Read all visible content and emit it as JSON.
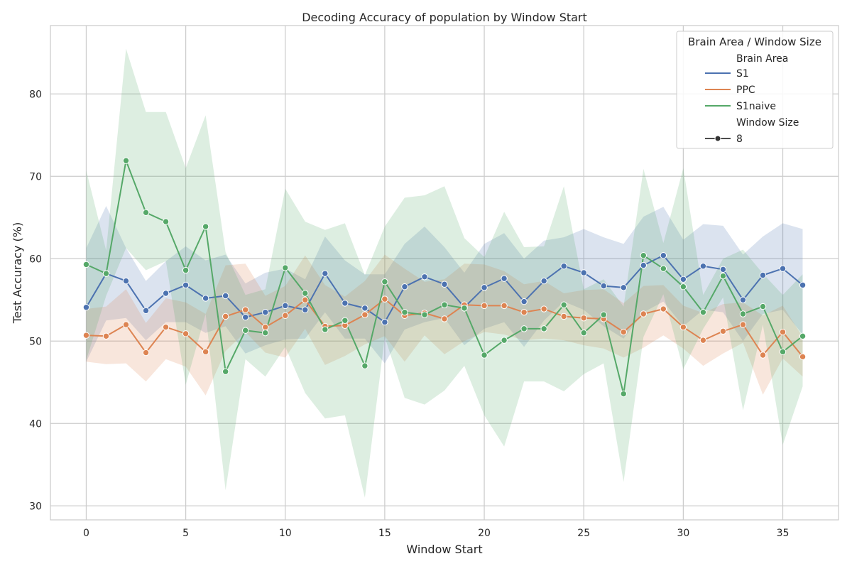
{
  "chart_data": {
    "type": "line",
    "title": "Decoding Accuracy of population by Window Start",
    "xlabel": "Window Start",
    "ylabel": "Test Accuracy (%)",
    "xlim": [
      -1.8,
      37.8
    ],
    "ylim": [
      28.3,
      88.3
    ],
    "xticks": [
      0,
      5,
      10,
      15,
      20,
      25,
      30,
      35
    ],
    "yticks": [
      30,
      40,
      50,
      60,
      70,
      80
    ],
    "grid": true,
    "legend": {
      "title": "Brain Area / Window Size",
      "placement": "top-right",
      "hue_title": "Brain Area",
      "style_title": "Window Size",
      "style_label": "8"
    },
    "series": [
      {
        "name": "S1",
        "color": "#4c72b0",
        "x": [
          0,
          1,
          2,
          3,
          4,
          5,
          6,
          7,
          8,
          9,
          10,
          11,
          12,
          13,
          14,
          15,
          16,
          17,
          18,
          19,
          20,
          21,
          22,
          23,
          24,
          25,
          26,
          27,
          28,
          29,
          30,
          31,
          32,
          33,
          34,
          35,
          36
        ],
        "y": [
          54.1,
          58.2,
          57.3,
          53.7,
          55.8,
          56.8,
          55.2,
          55.5,
          52.9,
          53.5,
          54.3,
          53.8,
          58.2,
          54.6,
          54.0,
          52.3,
          56.6,
          57.8,
          56.9,
          54.1,
          56.5,
          57.6,
          54.8,
          57.3,
          59.1,
          58.3,
          56.7,
          56.5,
          59.2,
          60.4,
          57.5,
          59.1,
          58.7,
          55.0,
          58.0,
          58.8,
          56.8
        ],
        "lower": [
          47.5,
          52.5,
          52.8,
          50.1,
          52.3,
          52.3,
          51.0,
          51.8,
          48.5,
          49.5,
          50.2,
          50.3,
          53.5,
          50.3,
          50.3,
          47.3,
          51.4,
          52.3,
          52.8,
          49.5,
          51.5,
          52.3,
          49.3,
          52.5,
          54.8,
          53.8,
          51.8,
          50.3,
          53.5,
          54.8,
          51.8,
          53.8,
          53.5,
          50.0,
          53.3,
          53.8,
          50.8
        ],
        "upper": [
          61.3,
          66.4,
          61.3,
          57.3,
          59.7,
          61.5,
          59.8,
          60.5,
          57.0,
          58.3,
          58.8,
          57.5,
          62.7,
          59.8,
          58.1,
          58.1,
          61.8,
          63.9,
          61.4,
          58.3,
          61.8,
          63.1,
          60.0,
          62.2,
          62.6,
          63.6,
          62.6,
          61.8,
          65.1,
          66.3,
          62.3,
          64.2,
          64.0,
          60.5,
          62.7,
          64.3,
          63.6
        ]
      },
      {
        "name": "PPC",
        "color": "#dd8452",
        "x": [
          0,
          1,
          2,
          3,
          4,
          5,
          6,
          7,
          8,
          9,
          10,
          11,
          12,
          13,
          14,
          15,
          16,
          17,
          18,
          19,
          20,
          21,
          22,
          23,
          24,
          25,
          26,
          27,
          28,
          29,
          30,
          31,
          32,
          33,
          34,
          35,
          36
        ],
        "y": [
          50.7,
          50.6,
          52.0,
          48.6,
          51.7,
          50.9,
          48.7,
          53.0,
          53.8,
          51.7,
          53.1,
          55.0,
          51.8,
          51.9,
          53.2,
          55.1,
          53.1,
          53.4,
          52.7,
          54.4,
          54.3,
          54.3,
          53.5,
          53.9,
          53.0,
          52.8,
          52.7,
          51.1,
          53.3,
          53.9,
          51.7,
          50.1,
          51.2,
          52.0,
          48.3,
          51.1,
          48.1
        ],
        "lower": [
          47.5,
          47.2,
          47.3,
          45.1,
          47.8,
          46.9,
          43.4,
          48.8,
          51.1,
          48.6,
          48.0,
          51.5,
          47.1,
          48.2,
          49.6,
          50.6,
          47.5,
          50.7,
          48.4,
          50.0,
          51.1,
          50.8,
          50.1,
          50.3,
          50.1,
          49.5,
          49.1,
          48.0,
          49.2,
          50.7,
          49.1,
          47.0,
          48.5,
          49.8,
          43.5,
          47.9,
          45.7
        ],
        "upper": [
          53.9,
          54.2,
          56.3,
          52.2,
          55.2,
          54.7,
          53.3,
          59.2,
          59.4,
          55.5,
          56.7,
          60.4,
          56.8,
          55.4,
          57.3,
          60.5,
          58.8,
          57.2,
          57.5,
          59.4,
          59.3,
          58.5,
          56.9,
          57.3,
          55.8,
          56.2,
          56.3,
          54.6,
          56.7,
          56.8,
          54.3,
          53.4,
          54.5,
          54.7,
          53.1,
          54.3,
          50.5
        ]
      },
      {
        "name": "S1naive",
        "color": "#55a868",
        "x": [
          0,
          1,
          2,
          3,
          4,
          5,
          6,
          7,
          8,
          9,
          10,
          11,
          12,
          13,
          14,
          15,
          16,
          17,
          18,
          19,
          20,
          21,
          22,
          23,
          24,
          25,
          26,
          27,
          28,
          29,
          30,
          31,
          32,
          33,
          34,
          35,
          36
        ],
        "y": [
          59.3,
          58.2,
          71.9,
          65.6,
          64.5,
          58.6,
          63.9,
          46.3,
          51.3,
          51.0,
          58.9,
          55.8,
          51.4,
          52.5,
          47.0,
          57.2,
          53.5,
          53.2,
          54.4,
          54.0,
          48.3,
          50.1,
          51.5,
          51.5,
          54.4,
          51.0,
          53.2,
          43.6,
          60.4,
          58.8,
          56.6,
          53.5,
          57.9,
          53.3,
          54.2,
          48.7,
          50.6
        ],
        "lower": [
          47.7,
          55.5,
          61.3,
          58.6,
          59.7,
          44.7,
          53.3,
          31.9,
          47.8,
          45.7,
          49.3,
          43.7,
          40.6,
          41.0,
          31.0,
          50.5,
          43.1,
          42.3,
          44.0,
          47.0,
          41.0,
          37.2,
          45.1,
          45.1,
          43.9,
          46.0,
          47.3,
          32.9,
          50.5,
          55.7,
          46.6,
          51.5,
          55.3,
          41.6,
          52.0,
          37.4,
          44.5
        ],
        "upper": [
          70.7,
          61.0,
          85.5,
          77.8,
          77.8,
          71.0,
          77.4,
          60.8,
          55.6,
          56.3,
          68.5,
          64.5,
          63.5,
          64.3,
          58.0,
          63.9,
          67.4,
          67.7,
          68.8,
          62.5,
          60.2,
          65.7,
          61.4,
          61.5,
          68.8,
          56.3,
          57.5,
          54.2,
          70.9,
          61.9,
          71.0,
          55.6,
          60.0,
          61.1,
          58.2,
          55.6,
          58.1
        ]
      }
    ]
  }
}
